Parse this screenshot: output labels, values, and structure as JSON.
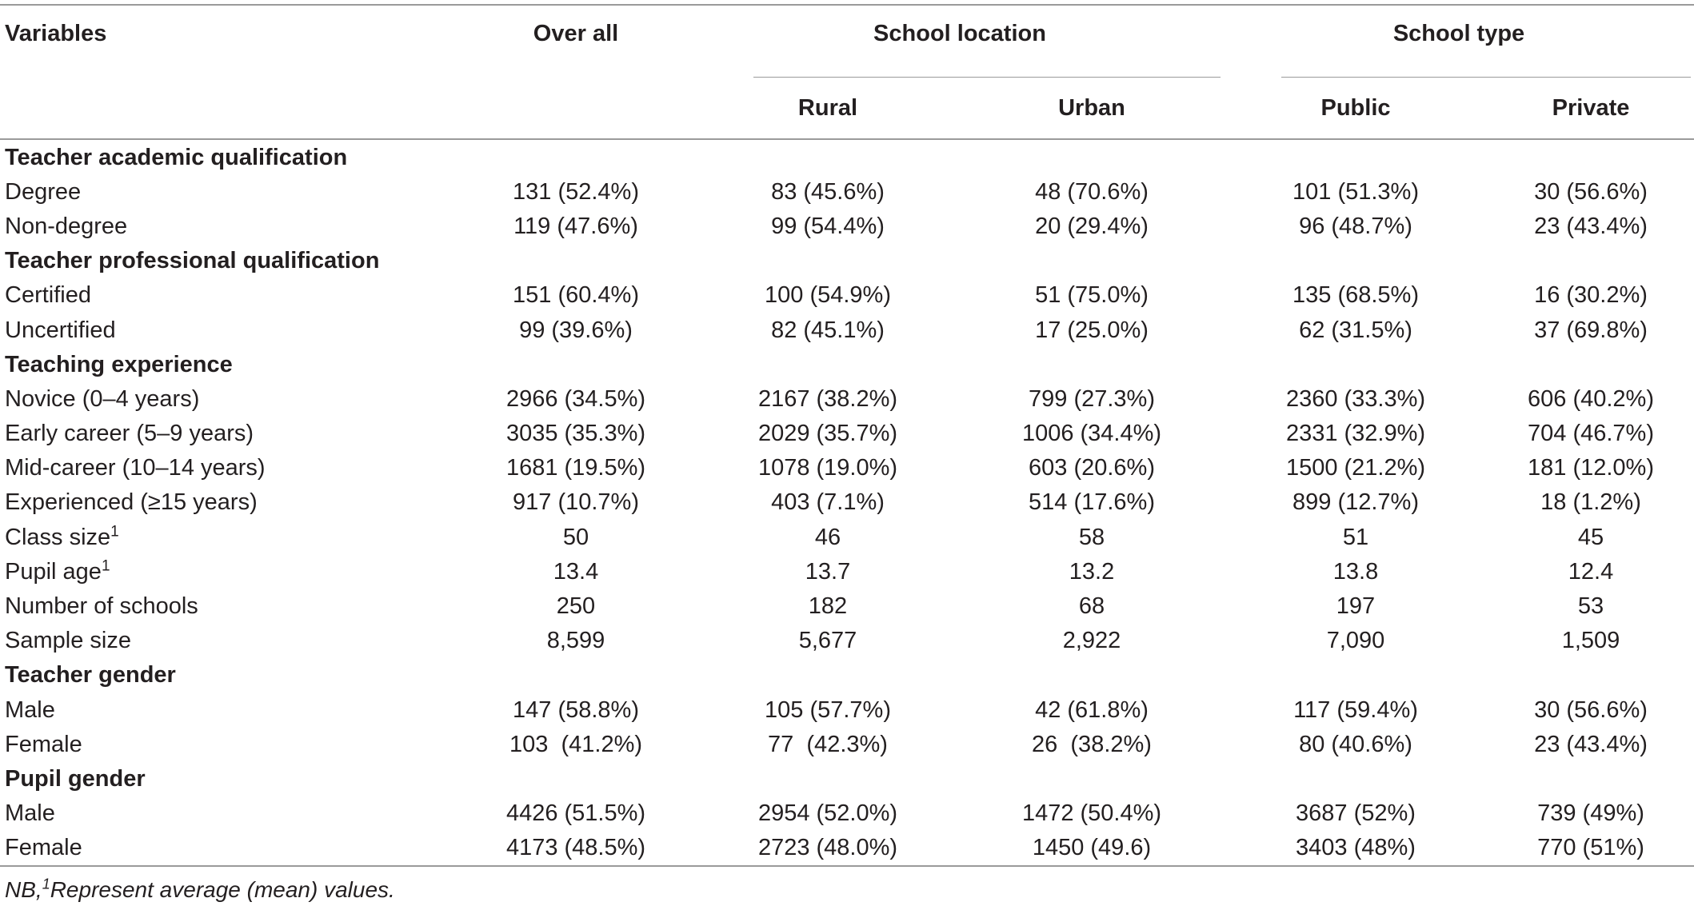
{
  "header": {
    "variables": "Variables",
    "overall": "Over all",
    "school_location": "School location",
    "school_type": "School type",
    "rural": "Rural",
    "urban": "Urban",
    "public": "Public",
    "private": "Private"
  },
  "rows": [
    {
      "label": "Teacher academic qualification",
      "section": true,
      "values": [
        "",
        "",
        "",
        "",
        ""
      ]
    },
    {
      "label": "Degree",
      "values": [
        "131 (52.4%)",
        "83 (45.6%)",
        "48 (70.6%)",
        "101 (51.3%)",
        "30 (56.6%)"
      ]
    },
    {
      "label": "Non-degree",
      "values": [
        "119 (47.6%)",
        "99 (54.4%)",
        "20 (29.4%)",
        "96 (48.7%)",
        "23 (43.4%)"
      ]
    },
    {
      "label": "Teacher professional qualification",
      "section": true,
      "values": [
        "",
        "",
        "",
        "",
        ""
      ]
    },
    {
      "label": "Certified",
      "values": [
        "151 (60.4%)",
        "100 (54.9%)",
        "51 (75.0%)",
        "135 (68.5%)",
        "16 (30.2%)"
      ]
    },
    {
      "label": "Uncertified",
      "values": [
        "99 (39.6%)",
        "82 (45.1%)",
        "17 (25.0%)",
        "62 (31.5%)",
        "37 (69.8%)"
      ]
    },
    {
      "label": "Teaching experience",
      "section": true,
      "values": [
        "",
        "",
        "",
        "",
        ""
      ]
    },
    {
      "label": "Novice  (0–4 years)",
      "values": [
        "2966 (34.5%)",
        "2167 (38.2%)",
        "799 (27.3%)",
        "2360 (33.3%)",
        "606 (40.2%)"
      ]
    },
    {
      "label": "Early career  (5–9 years)",
      "values": [
        "3035 (35.3%)",
        "2029 (35.7%)",
        "1006 (34.4%)",
        "2331 (32.9%)",
        "704 (46.7%)"
      ]
    },
    {
      "label": "Mid-career  (10–14 years)",
      "values": [
        "1681 (19.5%)",
        "1078 (19.0%)",
        "603 (20.6%)",
        "1500 (21.2%)",
        "181 (12.0%)"
      ]
    },
    {
      "label": "Experienced  (≥15 years)",
      "values": [
        "917 (10.7%)",
        "403 (7.1%)",
        "514 (17.6%)",
        "899 (12.7%)",
        "18 (1.2%)"
      ]
    },
    {
      "label": "Class size",
      "sup": "1",
      "values": [
        "50",
        "46",
        "58",
        "51",
        "45"
      ]
    },
    {
      "label": "Pupil age",
      "sup": "1",
      "values": [
        "13.4",
        "13.7",
        "13.2",
        "13.8",
        "12.4"
      ]
    },
    {
      "label": "Number of schools",
      "values": [
        "250",
        "182",
        "68",
        "197",
        "53"
      ]
    },
    {
      "label": "Sample size",
      "values": [
        "8,599",
        "5,677",
        "2,922",
        "7,090",
        "1,509"
      ]
    },
    {
      "label": "Teacher gender",
      "section": true,
      "values": [
        "",
        "",
        "",
        "",
        ""
      ]
    },
    {
      "label": "Male",
      "values": [
        "147 (58.8%)",
        "105 (57.7%)",
        "42 (61.8%)",
        "117 (59.4%)",
        "30 (56.6%)"
      ]
    },
    {
      "label": "Female",
      "values": [
        "103  (41.2%)",
        "77  (42.3%)",
        "26  (38.2%)",
        "80 (40.6%)",
        "23 (43.4%)"
      ]
    },
    {
      "label": "Pupil gender",
      "section": true,
      "values": [
        "",
        "",
        "",
        "",
        ""
      ]
    },
    {
      "label": "Male",
      "values": [
        "4426 (51.5%)",
        "2954 (52.0%)",
        "1472 (50.4%)",
        "3687 (52%)",
        "739 (49%)"
      ]
    },
    {
      "label": "Female",
      "values": [
        "4173 (48.5%)",
        "2723 (48.0%)",
        "1450 (49.6)",
        "3403 (48%)",
        "770 (51%)"
      ]
    }
  ],
  "footnote": {
    "prefix": "NB,",
    "sup": "1",
    "text": "Represent average (mean) values."
  }
}
